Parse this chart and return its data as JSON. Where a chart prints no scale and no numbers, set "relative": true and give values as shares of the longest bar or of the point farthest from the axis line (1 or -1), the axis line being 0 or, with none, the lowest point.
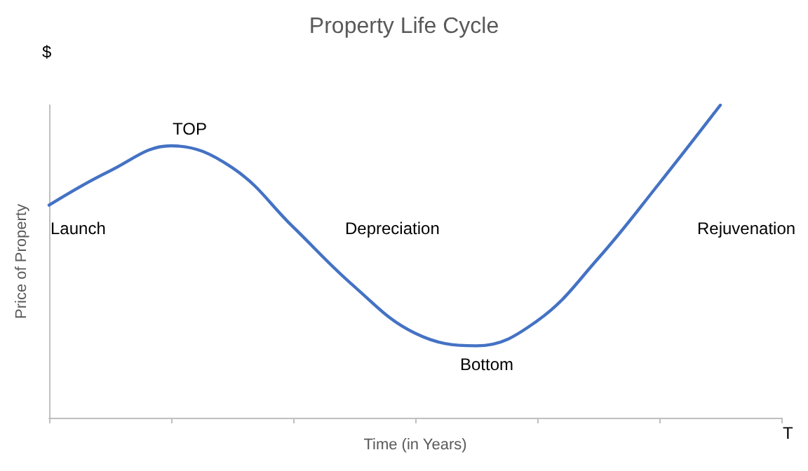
{
  "chart_data": {
    "type": "line",
    "title": "Property Life Cycle",
    "xlabel": "Time (in Years)",
    "ylabel": "Price of Property",
    "relative": true,
    "categories": [
      null,
      null,
      null,
      null,
      null,
      null,
      null,
      null,
      null,
      null,
      null,
      null,
      null
    ],
    "series": [
      {
        "color": "#4472c4",
        "values": [
          0.68,
          0.79,
          0.87,
          0.8,
          0.61,
          0.42,
          0.27,
          0.23,
          0.31,
          0.51,
          0.75,
          1.0,
          null
        ]
      }
    ],
    "annotations": [
      "$",
      "TOP",
      "Launch",
      "Depreciation",
      "Bottom",
      "Rejuvenation",
      "T"
    ],
    "grid": false,
    "marker": "none",
    "line_style": "solid"
  }
}
